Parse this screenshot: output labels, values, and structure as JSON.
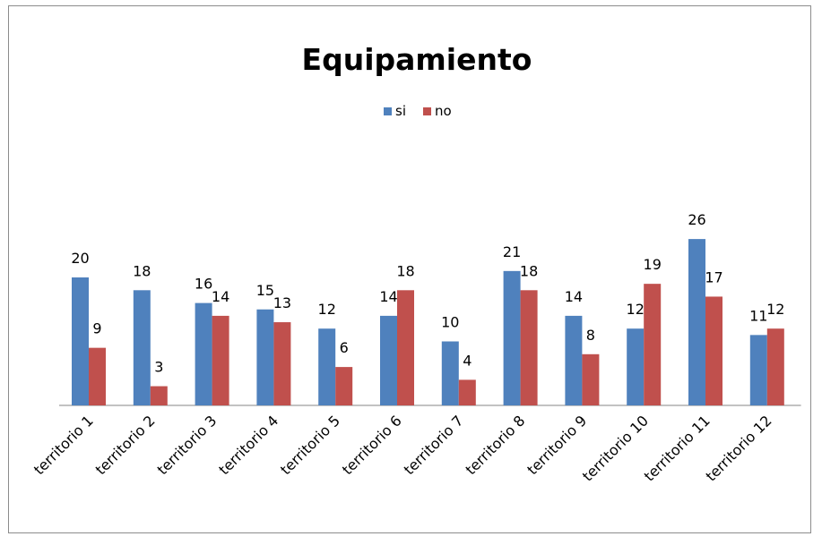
{
  "chart_data": {
    "type": "bar",
    "title": "Equipamiento",
    "xlabel": "",
    "ylabel": "",
    "ylim": [
      0,
      28
    ],
    "grid": false,
    "legend_position": "top",
    "categories": [
      "territorio 1",
      "territorio 2",
      "territorio 3",
      "territorio 4",
      "territorio 5",
      "territorio 6",
      "territorio 7",
      "territorio 8",
      "territorio 9",
      "territorio 10",
      "territorio 11",
      "territorio 12"
    ],
    "series": [
      {
        "name": "si",
        "color": "#4f81bd",
        "values": [
          20,
          18,
          16,
          15,
          12,
          14,
          10,
          21,
          14,
          12,
          26,
          11
        ]
      },
      {
        "name": "no",
        "color": "#c0504d",
        "values": [
          9,
          3,
          14,
          13,
          6,
          18,
          4,
          18,
          8,
          19,
          17,
          12
        ]
      }
    ]
  }
}
